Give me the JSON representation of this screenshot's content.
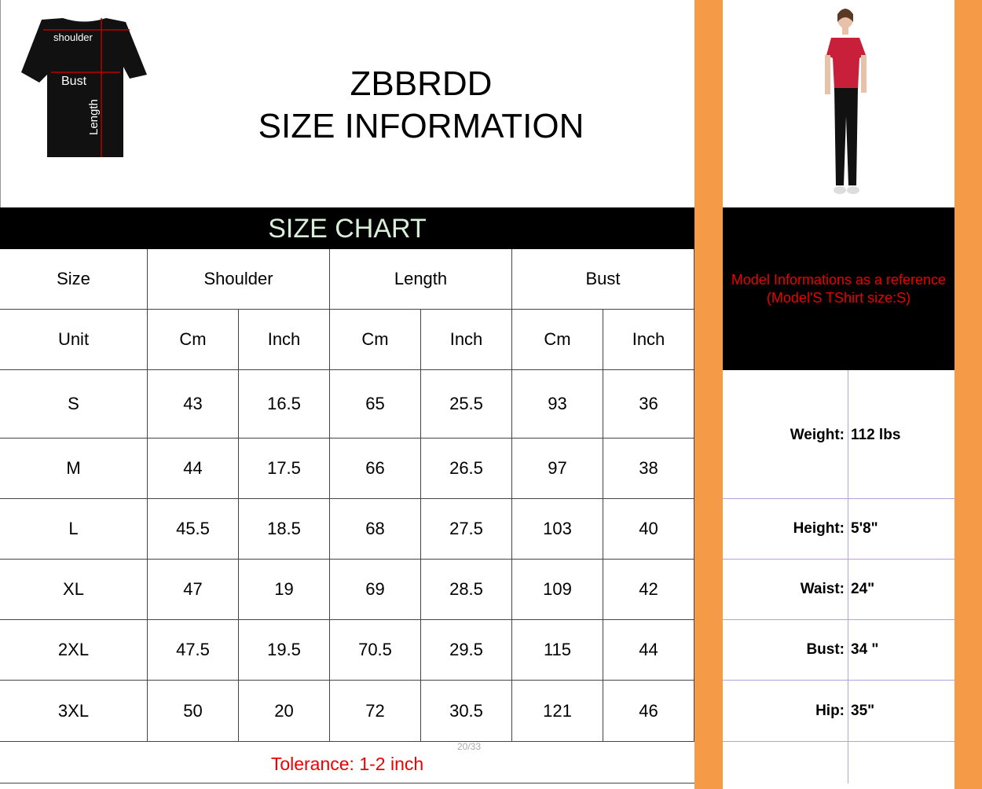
{
  "header": {
    "brand": "ZBBRDD",
    "title": "SIZE INFORMATION"
  },
  "diagram": {
    "shoulder": "shoulder",
    "bust": "Bust",
    "length": "Length"
  },
  "chart_band": "SIZE CHART",
  "table": {
    "groups": [
      "Size",
      "Shoulder",
      "Length",
      "Bust"
    ],
    "units": [
      "Unit",
      "Cm",
      "Inch",
      "Cm",
      "Inch",
      "Cm",
      "Inch"
    ],
    "rows": [
      [
        "S",
        "43",
        "16.5",
        "65",
        "25.5",
        "93",
        "36"
      ],
      [
        "M",
        "44",
        "17.5",
        "66",
        "26.5",
        "97",
        "38"
      ],
      [
        "L",
        "45.5",
        "18.5",
        "68",
        "27.5",
        "103",
        "40"
      ],
      [
        "XL",
        "47",
        "19",
        "69",
        "28.5",
        "109",
        "42"
      ],
      [
        "2XL",
        "47.5",
        "19.5",
        "70.5",
        "29.5",
        "115",
        "44"
      ],
      [
        "3XL",
        "50",
        "20",
        "72",
        "30.5",
        "121",
        "46"
      ]
    ]
  },
  "tolerance": "Tolerance: 1-2 inch",
  "page_indicator": "20/33",
  "model": {
    "line1": "Model Informations as a reference",
    "line2": "(Model'S TShirt size:S)",
    "stats": [
      {
        "label": "Weight:",
        "value": "112 lbs"
      },
      {
        "label": "Height:",
        "value": "5'8\""
      },
      {
        "label": "Waist:",
        "value": "24\""
      },
      {
        "label": "Bust:",
        "value": "34 \""
      },
      {
        "label": "Hip:",
        "value": "35\""
      }
    ]
  },
  "colors": {
    "accent_orange": "#f59a47",
    "red_text": "#e00000",
    "band_text": "#d8f0d8"
  }
}
